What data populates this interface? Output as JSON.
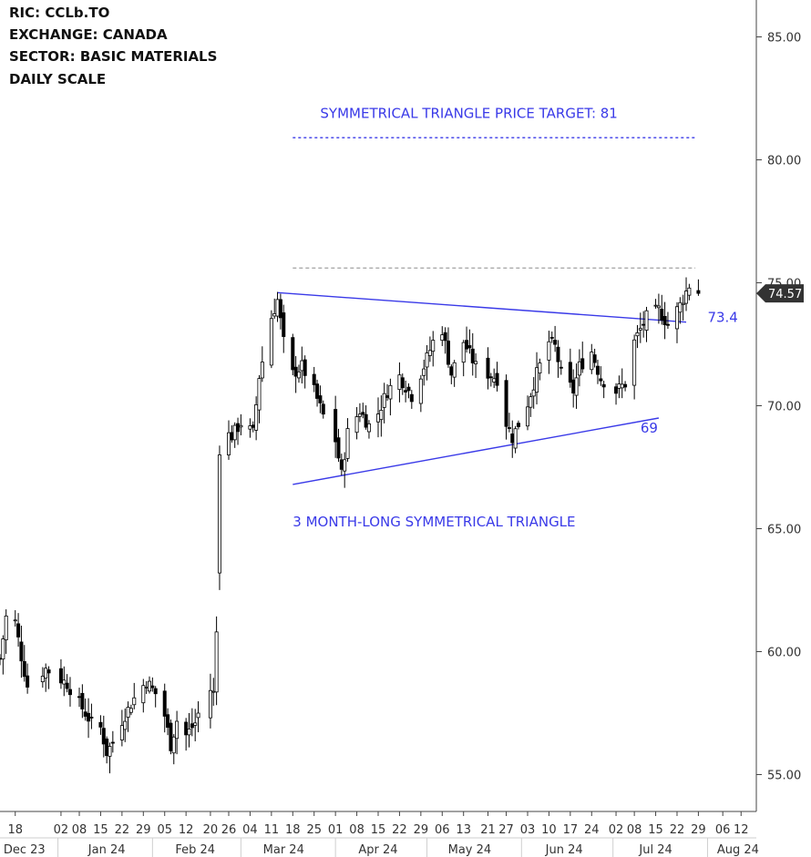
{
  "chart_data": {
    "type": "candlestick",
    "info_lines": [
      "RIC:  CCLb.TO",
      "EXCHANGE:  CANADA",
      "SECTOR:  BASIC MATERIALS",
      "DAILY SCALE"
    ],
    "y_axis": {
      "range": [
        53.5,
        86.5
      ],
      "ticks": [
        {
          "value": 85,
          "label": "85.00"
        },
        {
          "value": 80,
          "label": "80.00"
        },
        {
          "value": 75,
          "label": "75.00"
        },
        {
          "value": 70,
          "label": "70.00"
        },
        {
          "value": 65,
          "label": "65.00"
        },
        {
          "value": 60,
          "label": "60.00"
        },
        {
          "value": 55,
          "label": "55.00"
        }
      ]
    },
    "x_axis": {
      "range": [
        "2023-12-13",
        "2024-08-17"
      ],
      "day_ticks": [
        {
          "date": "2023-12-18",
          "label": "18"
        },
        {
          "date": "2024-01-02",
          "label": "02"
        },
        {
          "date": "2024-01-08",
          "label": "08"
        },
        {
          "date": "2024-01-15",
          "label": "15"
        },
        {
          "date": "2024-01-22",
          "label": "22"
        },
        {
          "date": "2024-01-29",
          "label": "29"
        },
        {
          "date": "2024-02-05",
          "label": "05"
        },
        {
          "date": "2024-02-12",
          "label": "12"
        },
        {
          "date": "2024-02-20",
          "label": "20"
        },
        {
          "date": "2024-02-26",
          "label": "26"
        },
        {
          "date": "2024-03-04",
          "label": "04"
        },
        {
          "date": "2024-03-11",
          "label": "11"
        },
        {
          "date": "2024-03-18",
          "label": "18"
        },
        {
          "date": "2024-03-25",
          "label": "25"
        },
        {
          "date": "2024-04-01",
          "label": "01"
        },
        {
          "date": "2024-04-08",
          "label": "08"
        },
        {
          "date": "2024-04-15",
          "label": "15"
        },
        {
          "date": "2024-04-22",
          "label": "22"
        },
        {
          "date": "2024-04-29",
          "label": "29"
        },
        {
          "date": "2024-05-06",
          "label": "06"
        },
        {
          "date": "2024-05-13",
          "label": "13"
        },
        {
          "date": "2024-05-21",
          "label": "21"
        },
        {
          "date": "2024-05-27",
          "label": "27"
        },
        {
          "date": "2024-06-03",
          "label": "03"
        },
        {
          "date": "2024-06-10",
          "label": "10"
        },
        {
          "date": "2024-06-17",
          "label": "17"
        },
        {
          "date": "2024-06-24",
          "label": "24"
        },
        {
          "date": "2024-07-02",
          "label": "02"
        },
        {
          "date": "2024-07-08",
          "label": "08"
        },
        {
          "date": "2024-07-15",
          "label": "15"
        },
        {
          "date": "2024-07-22",
          "label": "22"
        },
        {
          "date": "2024-07-29",
          "label": "29"
        },
        {
          "date": "2024-08-06",
          "label": "06"
        },
        {
          "date": "2024-08-12",
          "label": "12"
        }
      ],
      "month_labels": [
        {
          "date": "2023-12-21",
          "label": "Dec 23"
        },
        {
          "date": "2024-01-17",
          "label": "Jan 24"
        },
        {
          "date": "2024-02-15",
          "label": "Feb 24"
        },
        {
          "date": "2024-03-15",
          "label": "Mar 24"
        },
        {
          "date": "2024-04-15",
          "label": "Apr 24"
        },
        {
          "date": "2024-05-15",
          "label": "May 24"
        },
        {
          "date": "2024-06-15",
          "label": "Jun 24"
        },
        {
          "date": "2024-07-15",
          "label": "Jul 24"
        },
        {
          "date": "2024-08-11",
          "label": "Aug 24"
        }
      ],
      "month_separators": [
        "2024-01-01",
        "2024-02-01",
        "2024-03-01",
        "2024-04-01",
        "2024-05-01",
        "2024-06-01",
        "2024-07-01",
        "2024-08-01"
      ]
    },
    "last_price": {
      "value": 74.57,
      "label": "74.57"
    },
    "anchors": [
      [
        "2023-12-13",
        59.7
      ],
      [
        "2023-12-15",
        61.4
      ],
      [
        "2023-12-18",
        61.2
      ],
      [
        "2023-12-20",
        59.8
      ],
      [
        "2023-12-22",
        58.6
      ],
      [
        "2023-12-28",
        59.3
      ],
      [
        "2024-01-04",
        58.7
      ],
      [
        "2024-01-08",
        57.9
      ],
      [
        "2024-01-12",
        57.1
      ],
      [
        "2024-01-15",
        56.9
      ],
      [
        "2024-01-17",
        55.9
      ],
      [
        "2024-01-19",
        56.3
      ],
      [
        "2024-01-22",
        57.2
      ],
      [
        "2024-01-26",
        58.1
      ],
      [
        "2024-01-30",
        58.8
      ],
      [
        "2024-02-02",
        58.3
      ],
      [
        "2024-02-05",
        57.4
      ],
      [
        "2024-02-07",
        56.2
      ],
      [
        "2024-02-09",
        57.2
      ],
      [
        "2024-02-12",
        56.6
      ],
      [
        "2024-02-15",
        57.1
      ],
      [
        "2024-02-19",
        58.6
      ],
      [
        "2024-02-21",
        58.3
      ],
      [
        "2024-02-23",
        63.3
      ],
      [
        "2024-02-26",
        68.6
      ],
      [
        "2024-03-01",
        69.3
      ],
      [
        "2024-03-05",
        68.9
      ],
      [
        "2024-03-07",
        71.2
      ],
      [
        "2024-03-11",
        73.6
      ],
      [
        "2024-03-13",
        74.3
      ],
      [
        "2024-03-15",
        72.6
      ],
      [
        "2024-03-18",
        71.3
      ],
      [
        "2024-03-21",
        71.6
      ],
      [
        "2024-03-25",
        70.6
      ],
      [
        "2024-03-28",
        69.6
      ],
      [
        "2024-04-01",
        68.6
      ],
      [
        "2024-04-03",
        67.2
      ],
      [
        "2024-04-05",
        68.9
      ],
      [
        "2024-04-09",
        69.8
      ],
      [
        "2024-04-12",
        69.2
      ],
      [
        "2024-04-15",
        69.7
      ],
      [
        "2024-04-18",
        70.6
      ],
      [
        "2024-04-22",
        71.2
      ],
      [
        "2024-04-26",
        70.4
      ],
      [
        "2024-04-30",
        71.6
      ],
      [
        "2024-05-03",
        72.6
      ],
      [
        "2024-05-06",
        73.1
      ],
      [
        "2024-05-09",
        71.3
      ],
      [
        "2024-05-13",
        72.6
      ],
      [
        "2024-05-17",
        71.6
      ],
      [
        "2024-05-21",
        71.3
      ],
      [
        "2024-05-24",
        71.1
      ],
      [
        "2024-05-27",
        69.3
      ],
      [
        "2024-05-29",
        68.7
      ],
      [
        "2024-06-03",
        70.1
      ],
      [
        "2024-06-06",
        71.3
      ],
      [
        "2024-06-10",
        72.6
      ],
      [
        "2024-06-12",
        72.4
      ],
      [
        "2024-06-14",
        71.3
      ],
      [
        "2024-06-18",
        70.6
      ],
      [
        "2024-06-20",
        71.6
      ],
      [
        "2024-06-24",
        72.2
      ],
      [
        "2024-06-27",
        71.1
      ],
      [
        "2024-07-02",
        70.6
      ],
      [
        "2024-07-05",
        70.9
      ],
      [
        "2024-07-08",
        72.6
      ],
      [
        "2024-07-10",
        73.1
      ],
      [
        "2024-07-12",
        73.6
      ],
      [
        "2024-07-16",
        73.9
      ],
      [
        "2024-07-19",
        73.3
      ],
      [
        "2024-07-23",
        74.1
      ],
      [
        "2024-07-26",
        74.9
      ],
      [
        "2024-07-29",
        74.57
      ]
    ],
    "annotations": [
      {
        "text": "SYMMETRICAL TRIANGLE PRICE TARGET: 81",
        "date": "2024-03-27",
        "value": 81.7,
        "color": "#3a3ae8"
      },
      {
        "text": "73.4",
        "date": "2024-08-01",
        "value": 73.4,
        "color": "#3a3ae8"
      },
      {
        "text": "69",
        "date": "2024-07-10",
        "value": 68.9,
        "color": "#3a3ae8"
      },
      {
        "text": "3 MONTH-LONG SYMMETRICAL TRIANGLE",
        "date": "2024-03-18",
        "value": 65.1,
        "color": "#3a3ae8"
      }
    ],
    "lines": [
      {
        "name": "resistance",
        "from": [
          "2024-03-13",
          74.6
        ],
        "to": [
          "2024-07-25",
          73.4
        ],
        "color": "#3a3ae8",
        "style": "solid"
      },
      {
        "name": "support",
        "from": [
          "2024-03-18",
          66.8
        ],
        "to": [
          "2024-07-16",
          69.5
        ],
        "color": "#3a3ae8",
        "style": "solid"
      },
      {
        "name": "target",
        "from": [
          "2024-03-18",
          80.9
        ],
        "to": [
          "2024-07-28",
          80.9
        ],
        "color": "#3a3ae8",
        "style": "dotted"
      },
      {
        "name": "prior-high",
        "from": [
          "2024-03-18",
          75.6
        ],
        "to": [
          "2024-07-28",
          75.6
        ],
        "color": "#aaaaaa",
        "style": "dashed"
      }
    ],
    "colors": {
      "bull": "#ffffff",
      "bear": "#000000",
      "wick": "#000000",
      "axis": "#444444",
      "tag": "#333333"
    }
  }
}
